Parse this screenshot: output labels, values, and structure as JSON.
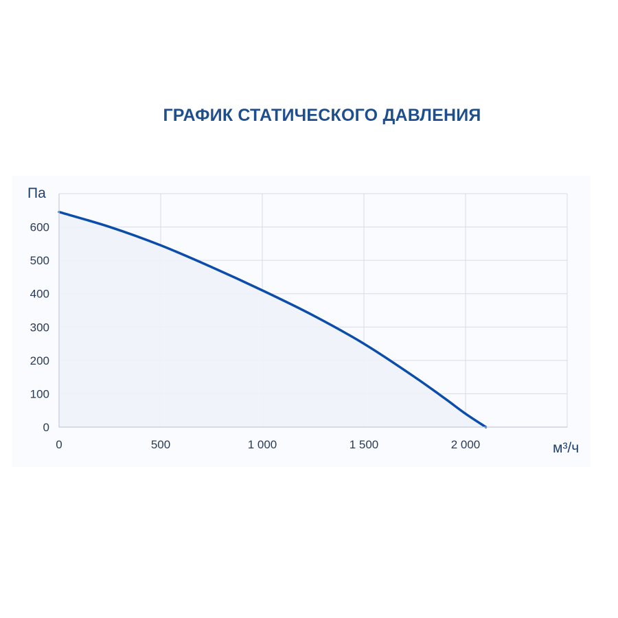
{
  "chart_data": {
    "type": "area",
    "title": "ГРАФИК СТАТИЧЕСКОГО ДАВЛЕНИЯ",
    "xlabel": "м³/ч",
    "ylabel": "Па",
    "xlim": [
      0,
      2500
    ],
    "ylim": [
      0,
      700
    ],
    "x_ticks": [
      0,
      500,
      1000,
      1500,
      2000
    ],
    "x_tick_labels": [
      "0",
      "500",
      "1 000",
      "1 500",
      "2 000"
    ],
    "y_ticks": [
      0,
      100,
      200,
      300,
      400,
      500,
      600
    ],
    "y_tick_labels": [
      "0",
      "100",
      "200",
      "300",
      "400",
      "500",
      "600"
    ],
    "grid": true,
    "series": [
      {
        "x": [
          0,
          250,
          500,
          750,
          1000,
          1250,
          1500,
          1750,
          1900,
          2000,
          2100
        ],
        "y": [
          645,
          600,
          545,
          480,
          410,
          335,
          250,
          150,
          85,
          40,
          0
        ]
      }
    ],
    "colors": {
      "line": "#0b4dab",
      "fill": "#eef2fa",
      "grid": "#d6dbe6",
      "axis": "#c5cad6",
      "title": "#1f4e8c"
    }
  }
}
